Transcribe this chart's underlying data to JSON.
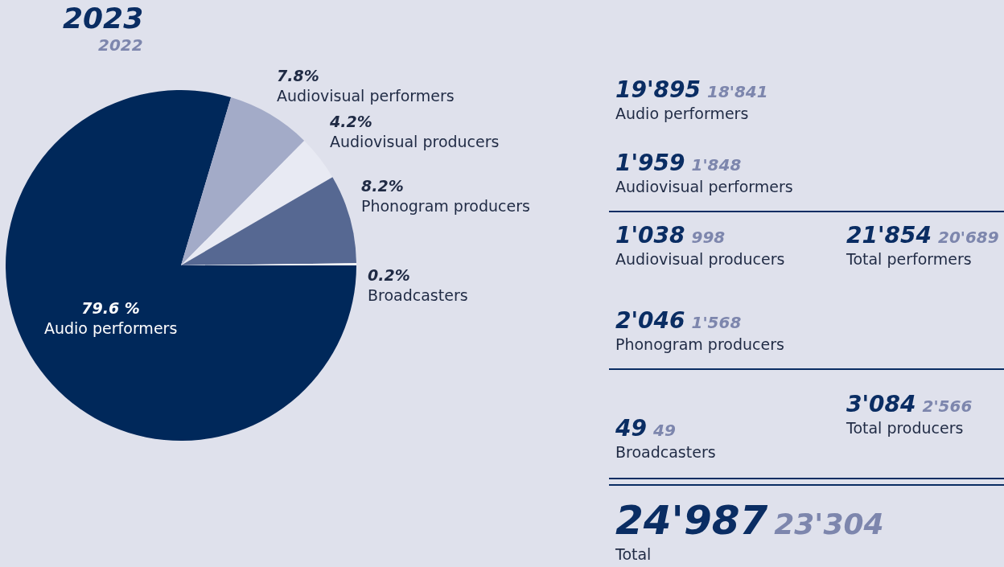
{
  "chart_data": [
    {
      "type": "pie",
      "title": "2023",
      "subtitle": "2022",
      "categories": [
        "Audio performers",
        "Audiovisual performers",
        "Audiovisual producers",
        "Phonogram producers",
        "Broadcasters"
      ],
      "values": [
        79.6,
        7.8,
        4.2,
        8.2,
        0.2
      ],
      "value_labels": [
        "79.6 %",
        "7.8%",
        "4.2%",
        "8.2%",
        "0.2%"
      ],
      "colors": [
        "#00285a",
        "#a3abc8",
        "#e8eaf3",
        "#566892",
        "#ffffff"
      ],
      "legend": false
    },
    {
      "type": "other",
      "annotations": [
        "19'895",
        "18'841",
        "Audio performers",
        "1'959",
        "1'848",
        "Audiovisual performers",
        "1'038",
        "998",
        "Audiovisual producers",
        "21'854",
        "20'689",
        "Total performers",
        "2'046",
        "1'568",
        "Phonogram producers",
        "49",
        "49",
        "Broadcasters",
        "3'084",
        "2'566",
        "Total producers",
        "24'987",
        "23'304",
        "Total"
      ]
    }
  ]
}
